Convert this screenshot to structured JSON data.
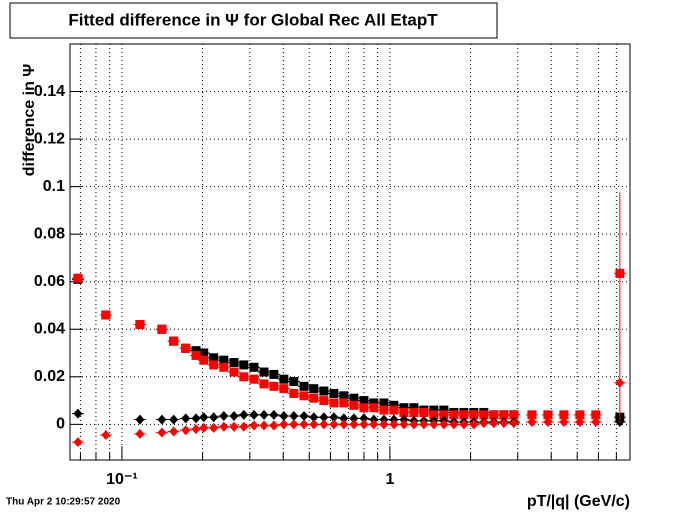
{
  "chart_data": {
    "type": "scatter",
    "title": "Fitted difference in Ψ for Global Rec All EtapT",
    "y_label": "difference in Ψ",
    "x_label": "pT/|q| (GeV/c)",
    "timestamp": "Thu Apr  2 10:29:57 2020",
    "xlog": true,
    "grid": true,
    "xlim": [
      0.064,
      7.87
    ],
    "ylim": [
      -0.015,
      0.16
    ],
    "xticks": [
      {
        "value": 0.1,
        "label": "10⁻¹"
      },
      1
    ],
    "xminorticks": [
      0.07,
      0.08,
      0.09,
      0.2,
      0.3,
      0.4,
      0.5,
      0.6,
      0.7,
      0.8,
      0.9,
      2,
      3,
      4,
      5,
      6,
      7
    ],
    "yticks": [
      0,
      0.02,
      0.04,
      0.06,
      0.08,
      0.1,
      0.12,
      0.14
    ],
    "x": [
      0.0685,
      0.0871,
      0.1167,
      0.141,
      0.156,
      0.173,
      0.189,
      0.202,
      0.22,
      0.24,
      0.262,
      0.285,
      0.311,
      0.339,
      0.369,
      0.402,
      0.438,
      0.478,
      0.52,
      0.567,
      0.618,
      0.673,
      0.734,
      0.8,
      0.871,
      0.95,
      1.035,
      1.128,
      1.229,
      1.339,
      1.459,
      1.59,
      1.733,
      1.888,
      2.057,
      2.242,
      2.443,
      2.662,
      2.901,
      3.388,
      3.886,
      4.458,
      5.114,
      5.866,
      7.213
    ],
    "series": [
      {
        "name": "black-squares",
        "marker": "square",
        "color": "#000000",
        "values": [
          0.061,
          0.046,
          0.042,
          0.04,
          0.035,
          0.032,
          0.031,
          0.03,
          0.028,
          0.027,
          0.026,
          0.025,
          0.024,
          0.022,
          0.021,
          0.019,
          0.018,
          0.016,
          0.015,
          0.014,
          0.013,
          0.012,
          0.011,
          0.01,
          0.009,
          0.009,
          0.008,
          0.007,
          0.007,
          0.006,
          0.006,
          0.006,
          0.005,
          0.005,
          0.005,
          0.005,
          0.004,
          0.004,
          0.004,
          null,
          null,
          null,
          null,
          null,
          0.003
        ]
      },
      {
        "name": "red-squares",
        "marker": "square",
        "color": "#ff0000",
        "values": [
          0.0615,
          0.046,
          0.042,
          0.04,
          0.035,
          0.032,
          0.029,
          0.027,
          0.025,
          0.024,
          0.022,
          0.02,
          0.019,
          0.017,
          0.016,
          0.015,
          0.013,
          0.012,
          0.011,
          0.01,
          0.009,
          0.009,
          0.008,
          0.007,
          0.007,
          0.006,
          0.006,
          0.005,
          0.005,
          0.005,
          0.004,
          0.004,
          0.004,
          0.004,
          0.004,
          0.004,
          0.004,
          0.004,
          0.004,
          0.004,
          0.004,
          0.004,
          0.004,
          0.004,
          0.0635
        ],
        "errors": [
          null,
          null,
          null,
          null,
          null,
          null,
          null,
          null,
          null,
          null,
          null,
          null,
          null,
          null,
          null,
          null,
          null,
          null,
          null,
          null,
          null,
          null,
          null,
          null,
          null,
          null,
          null,
          null,
          null,
          null,
          null,
          null,
          null,
          null,
          null,
          null,
          null,
          null,
          null,
          null,
          null,
          null,
          null,
          null,
          0.034
        ]
      },
      {
        "name": "black-diamonds",
        "marker": "diamond",
        "color": "#000000",
        "values": [
          0.0045,
          null,
          0.002,
          0.002,
          0.002,
          0.0025,
          0.0025,
          0.003,
          0.003,
          0.0035,
          0.0035,
          0.004,
          0.004,
          0.004,
          0.004,
          0.0035,
          0.0035,
          0.0035,
          0.003,
          0.003,
          0.003,
          0.0025,
          0.0025,
          0.0025,
          0.002,
          0.002,
          0.002,
          0.002,
          0.0015,
          0.0015,
          0.0015,
          0.0015,
          0.001,
          0.001,
          0.001,
          0.001,
          0.001,
          0.001,
          0.001,
          null,
          null,
          null,
          null,
          null,
          0.001
        ]
      },
      {
        "name": "red-diamonds",
        "marker": "diamond",
        "color": "#ff0000",
        "values": [
          -0.0075,
          -0.0045,
          -0.004,
          -0.0035,
          -0.003,
          -0.0025,
          -0.002,
          -0.0015,
          -0.0015,
          -0.001,
          -0.001,
          -0.001,
          -0.0005,
          -0.0005,
          -0.0005,
          0,
          0,
          0,
          0,
          0,
          0,
          0,
          0,
          0,
          0,
          0,
          0,
          0,
          0,
          0,
          0,
          0,
          0,
          0,
          0,
          0.0005,
          0.0005,
          0.0005,
          0.0005,
          0.001,
          0.001,
          0.001,
          0.001,
          0.001,
          0.0175
        ],
        "errors": [
          null,
          null,
          null,
          null,
          null,
          null,
          null,
          null,
          null,
          null,
          null,
          null,
          null,
          null,
          null,
          null,
          null,
          null,
          null,
          null,
          null,
          null,
          null,
          null,
          null,
          null,
          null,
          null,
          null,
          null,
          null,
          null,
          null,
          null,
          null,
          null,
          null,
          null,
          null,
          null,
          null,
          null,
          null,
          null,
          0.017
        ]
      }
    ]
  }
}
